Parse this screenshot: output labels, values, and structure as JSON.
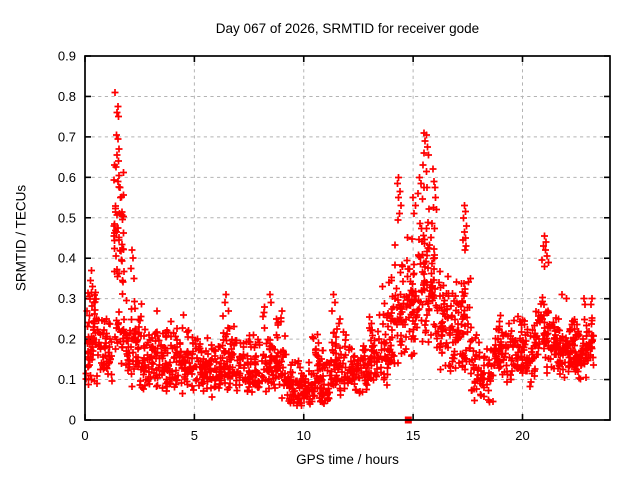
{
  "chart_data": {
    "type": "scatter",
    "title": "Day 067 of 2026, SRMTID for receiver gode",
    "xlabel": "GPS time / hours",
    "ylabel": "SRMTID / TECUs",
    "xlim": [
      0,
      24
    ],
    "ylim": [
      0,
      0.9
    ],
    "x_ticks": {
      "values": [
        0,
        5,
        10,
        15,
        20
      ],
      "labels": [
        "0",
        "5",
        "10",
        "15",
        "20"
      ]
    },
    "y_ticks": {
      "values": [
        0,
        0.1,
        0.2,
        0.3,
        0.4,
        0.5,
        0.6,
        0.7,
        0.8,
        0.9
      ],
      "labels": [
        "0",
        "0.1",
        "0.2",
        "0.3",
        "0.4",
        "0.5",
        "0.6",
        "0.7",
        "0.8",
        "0.9"
      ]
    },
    "grid": {
      "visible": true,
      "style": "dashed",
      "color": "#b4b4b4"
    },
    "frame_color": "#000000",
    "marker": {
      "shape": "plus",
      "color": "#ff0000",
      "size": 7
    },
    "special_points": [
      {
        "x": 14.78,
        "y": 0,
        "marker": "filled-square",
        "color": "#ff0000"
      }
    ],
    "notable_points": [
      [
        1.37,
        0.81
      ],
      [
        1.5,
        0.775
      ],
      [
        1.47,
        0.76
      ],
      [
        1.53,
        0.75
      ],
      [
        1.44,
        0.705
      ],
      [
        1.5,
        0.695
      ],
      [
        1.56,
        0.67
      ],
      [
        1.47,
        0.655
      ],
      [
        1.52,
        0.64
      ],
      [
        1.42,
        0.625
      ],
      [
        1.55,
        0.605
      ],
      [
        1.5,
        0.59
      ],
      [
        1.59,
        0.575
      ],
      [
        1.62,
        0.55
      ],
      [
        0.3,
        0.37
      ],
      [
        0.26,
        0.345
      ],
      [
        0.35,
        0.33
      ],
      [
        0.3,
        0.315
      ],
      [
        2.15,
        0.42
      ],
      [
        2.2,
        0.4
      ],
      [
        2.1,
        0.375
      ],
      [
        2.24,
        0.35
      ],
      [
        3.3,
        0.27
      ],
      [
        4.5,
        0.26
      ],
      [
        6.45,
        0.31
      ],
      [
        6.4,
        0.29
      ],
      [
        6.55,
        0.27
      ],
      [
        8.45,
        0.31
      ],
      [
        8.5,
        0.29
      ],
      [
        9.0,
        0.27
      ],
      [
        8.2,
        0.28
      ],
      [
        11.35,
        0.31
      ],
      [
        11.42,
        0.29
      ],
      [
        11.3,
        0.27
      ],
      [
        13.6,
        0.33
      ],
      [
        13.9,
        0.34
      ],
      [
        14.32,
        0.6
      ],
      [
        14.28,
        0.585
      ],
      [
        14.4,
        0.565
      ],
      [
        14.33,
        0.55
      ],
      [
        14.45,
        0.53
      ],
      [
        14.37,
        0.51
      ],
      [
        14.3,
        0.495
      ],
      [
        15.0,
        0.55
      ],
      [
        15.1,
        0.53
      ],
      [
        15.05,
        0.51
      ],
      [
        15.5,
        0.71
      ],
      [
        15.6,
        0.705
      ],
      [
        15.55,
        0.69
      ],
      [
        15.65,
        0.675
      ],
      [
        15.5,
        0.66
      ],
      [
        15.7,
        0.655
      ],
      [
        15.45,
        0.63
      ],
      [
        15.6,
        0.615
      ],
      [
        15.3,
        0.6
      ],
      [
        15.36,
        0.585
      ],
      [
        15.5,
        0.575
      ],
      [
        15.22,
        0.56
      ],
      [
        15.9,
        0.62
      ],
      [
        15.95,
        0.59
      ],
      [
        16.0,
        0.575
      ],
      [
        16.03,
        0.55
      ],
      [
        16.07,
        0.52
      ],
      [
        17.35,
        0.53
      ],
      [
        17.4,
        0.515
      ],
      [
        17.31,
        0.5
      ],
      [
        17.44,
        0.48
      ],
      [
        17.35,
        0.465
      ],
      [
        17.4,
        0.45
      ],
      [
        17.29,
        0.445
      ],
      [
        17.42,
        0.43
      ],
      [
        17.37,
        0.42
      ],
      [
        18.45,
        0.05
      ],
      [
        18.5,
        0.045
      ],
      [
        21.0,
        0.455
      ],
      [
        21.08,
        0.44
      ],
      [
        20.95,
        0.43
      ],
      [
        21.04,
        0.42
      ],
      [
        21.12,
        0.405
      ],
      [
        20.9,
        0.395
      ],
      [
        21.18,
        0.39
      ],
      [
        21.0,
        0.38
      ],
      [
        21.8,
        0.31
      ],
      [
        22.0,
        0.3
      ],
      [
        22.8,
        0.3
      ],
      [
        22.85,
        0.285
      ],
      [
        23.18,
        0.3
      ],
      [
        23.12,
        0.285
      ]
    ],
    "point_cloud": {
      "seed": 7,
      "clusters": [
        [
          0.05,
          0.65,
          70,
          0.08,
          0.16,
          0.33
        ],
        [
          0.65,
          1.25,
          45,
          0.07,
          0.13,
          0.27
        ],
        [
          1.3,
          1.8,
          45,
          0.3,
          0.45,
          0.66
        ],
        [
          1.3,
          1.9,
          25,
          0.1,
          0.2,
          0.3
        ],
        [
          1.9,
          2.6,
          60,
          0.07,
          0.14,
          0.33
        ],
        [
          2.6,
          4.0,
          110,
          0.06,
          0.12,
          0.25
        ],
        [
          4.0,
          5.2,
          90,
          0.06,
          0.12,
          0.24
        ],
        [
          5.2,
          6.2,
          80,
          0.05,
          0.11,
          0.22
        ],
        [
          6.2,
          6.9,
          60,
          0.06,
          0.13,
          0.28
        ],
        [
          6.9,
          8.1,
          90,
          0.05,
          0.11,
          0.23
        ],
        [
          8.1,
          9.3,
          95,
          0.05,
          0.12,
          0.27
        ],
        [
          9.3,
          10.4,
          90,
          0.03,
          0.07,
          0.15
        ],
        [
          10.4,
          11.2,
          70,
          0.03,
          0.08,
          0.22
        ],
        [
          11.2,
          12.0,
          65,
          0.05,
          0.1,
          0.26
        ],
        [
          12.0,
          13.0,
          75,
          0.05,
          0.1,
          0.2
        ],
        [
          13.0,
          14.0,
          80,
          0.08,
          0.15,
          0.3
        ],
        [
          14.0,
          14.65,
          55,
          0.12,
          0.22,
          0.45
        ],
        [
          14.65,
          15.25,
          55,
          0.13,
          0.25,
          0.48
        ],
        [
          15.25,
          16.05,
          85,
          0.17,
          0.32,
          0.6
        ],
        [
          16.05,
          16.7,
          55,
          0.1,
          0.2,
          0.42
        ],
        [
          16.7,
          17.65,
          85,
          0.1,
          0.2,
          0.4
        ],
        [
          17.65,
          18.75,
          70,
          0.04,
          0.1,
          0.22
        ],
        [
          18.75,
          20.6,
          150,
          0.08,
          0.16,
          0.27
        ],
        [
          20.6,
          21.5,
          70,
          0.1,
          0.19,
          0.35
        ],
        [
          21.5,
          22.4,
          85,
          0.1,
          0.17,
          0.28
        ],
        [
          22.4,
          23.05,
          60,
          0.09,
          0.16,
          0.26
        ],
        [
          23.05,
          23.25,
          18,
          0.12,
          0.18,
          0.3
        ]
      ]
    }
  }
}
